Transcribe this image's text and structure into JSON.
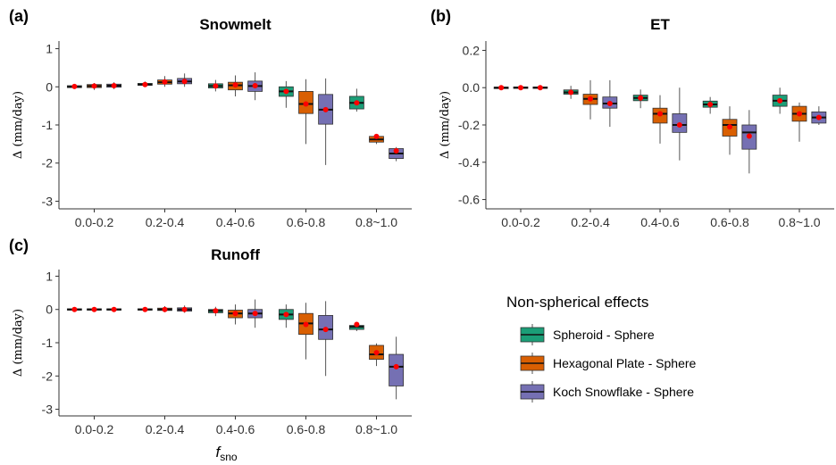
{
  "chart_data": [
    {
      "type": "box",
      "panel": "(a)",
      "title": "Snowmelt",
      "ylabel": "Δ (mm/day)",
      "xlabel": "",
      "ylim": [
        -3.2,
        1.2
      ],
      "yticks": [
        -3,
        -2,
        -1,
        0,
        1
      ],
      "ytick_labels": [
        "-3",
        "-2",
        "-1",
        "0",
        "1"
      ],
      "categories": [
        "0.0-0.2",
        "0.2-0.4",
        "0.4-0.6",
        "0.6-0.8",
        "0.8~1.0"
      ],
      "series": [
        {
          "name": "Spheroid - Sphere",
          "color": "#1b9e77",
          "boxes": [
            {
              "min": -0.05,
              "q1": -0.02,
              "median": 0.0,
              "q3": 0.03,
              "max": 0.06,
              "mean": 0.01
            },
            {
              "min": 0.0,
              "q1": 0.04,
              "median": 0.06,
              "q3": 0.09,
              "max": 0.14,
              "mean": 0.06
            },
            {
              "min": -0.12,
              "q1": -0.03,
              "median": 0.02,
              "q3": 0.08,
              "max": 0.18,
              "mean": 0.02
            },
            {
              "min": -0.55,
              "q1": -0.25,
              "median": -0.12,
              "q3": 0.0,
              "max": 0.15,
              "mean": -0.12
            },
            {
              "min": -0.65,
              "q1": -0.58,
              "median": -0.42,
              "q3": -0.25,
              "max": -0.05,
              "mean": -0.42
            }
          ]
        },
        {
          "name": "Hexagonal Plate - Sphere",
          "color": "#d95f02",
          "boxes": [
            {
              "min": -0.08,
              "q1": -0.02,
              "median": 0.02,
              "q3": 0.06,
              "max": 0.1,
              "mean": 0.02
            },
            {
              "min": 0.0,
              "q1": 0.07,
              "median": 0.12,
              "q3": 0.18,
              "max": 0.28,
              "mean": 0.13
            },
            {
              "min": -0.25,
              "q1": -0.08,
              "median": 0.04,
              "q3": 0.12,
              "max": 0.3,
              "mean": 0.05
            },
            {
              "min": -1.5,
              "q1": -0.7,
              "median": -0.45,
              "q3": -0.12,
              "max": 0.2,
              "mean": -0.45
            },
            {
              "min": -1.5,
              "q1": -1.45,
              "median": -1.38,
              "q3": -1.3,
              "max": -1.25,
              "mean": -1.3
            }
          ]
        },
        {
          "name": "Koch Snowflake - Sphere",
          "color": "#7570b3",
          "boxes": [
            {
              "min": -0.06,
              "q1": -0.01,
              "median": 0.03,
              "q3": 0.07,
              "max": 0.12,
              "mean": 0.03
            },
            {
              "min": 0.0,
              "q1": 0.08,
              "median": 0.14,
              "q3": 0.22,
              "max": 0.35,
              "mean": 0.14
            },
            {
              "min": -0.35,
              "q1": -0.12,
              "median": 0.02,
              "q3": 0.15,
              "max": 0.38,
              "mean": 0.03
            },
            {
              "min": -2.05,
              "q1": -0.98,
              "median": -0.6,
              "q3": -0.2,
              "max": 0.22,
              "mean": -0.6
            },
            {
              "min": -1.95,
              "q1": -1.88,
              "median": -1.75,
              "q3": -1.62,
              "max": -1.58,
              "mean": -1.68
            }
          ]
        }
      ]
    },
    {
      "type": "box",
      "panel": "(b)",
      "title": "ET",
      "ylabel": "Δ (mm/day)",
      "xlabel": "",
      "ylim": [
        -0.65,
        0.25
      ],
      "yticks": [
        -0.6,
        -0.4,
        -0.2,
        0.0,
        0.2
      ],
      "ytick_labels": [
        "-0.6",
        "-0.4",
        "-0.2",
        "0.0",
        "0.2"
      ],
      "categories": [
        "0.0-0.2",
        "0.2-0.4",
        "0.4-0.6",
        "0.6-0.8",
        "0.8~1.0"
      ],
      "series": [
        {
          "name": "Spheroid - Sphere",
          "color": "#1b9e77",
          "boxes": [
            {
              "min": -0.01,
              "q1": -0.005,
              "median": 0.0,
              "q3": 0.003,
              "max": 0.01,
              "mean": 0.0
            },
            {
              "min": -0.06,
              "q1": -0.035,
              "median": -0.025,
              "q3": -0.012,
              "max": 0.01,
              "mean": -0.025
            },
            {
              "min": -0.11,
              "q1": -0.07,
              "median": -0.055,
              "q3": -0.04,
              "max": -0.01,
              "mean": -0.055
            },
            {
              "min": -0.14,
              "q1": -0.105,
              "median": -0.09,
              "q3": -0.072,
              "max": -0.05,
              "mean": -0.09
            },
            {
              "min": -0.14,
              "q1": -0.1,
              "median": -0.07,
              "q3": -0.04,
              "max": 0.0,
              "mean": -0.07
            }
          ]
        },
        {
          "name": "Hexagonal Plate - Sphere",
          "color": "#d95f02",
          "boxes": [
            {
              "min": -0.01,
              "q1": -0.004,
              "median": 0.0,
              "q3": 0.004,
              "max": 0.01,
              "mean": 0.0
            },
            {
              "min": -0.17,
              "q1": -0.09,
              "median": -0.06,
              "q3": -0.035,
              "max": 0.04,
              "mean": -0.06
            },
            {
              "min": -0.3,
              "q1": -0.19,
              "median": -0.14,
              "q3": -0.11,
              "max": -0.04,
              "mean": -0.14
            },
            {
              "min": -0.36,
              "q1": -0.26,
              "median": -0.2,
              "q3": -0.17,
              "max": -0.1,
              "mean": -0.21
            },
            {
              "min": -0.29,
              "q1": -0.18,
              "median": -0.14,
              "q3": -0.1,
              "max": -0.08,
              "mean": -0.14
            }
          ]
        },
        {
          "name": "Koch Snowflake - Sphere",
          "color": "#7570b3",
          "boxes": [
            {
              "min": -0.01,
              "q1": -0.004,
              "median": 0.0,
              "q3": 0.004,
              "max": 0.01,
              "mean": 0.0
            },
            {
              "min": -0.21,
              "q1": -0.11,
              "median": -0.085,
              "q3": -0.05,
              "max": 0.04,
              "mean": -0.085
            },
            {
              "min": -0.39,
              "q1": -0.24,
              "median": -0.2,
              "q3": -0.14,
              "max": 0.0,
              "mean": -0.2
            },
            {
              "min": -0.46,
              "q1": -0.33,
              "median": -0.24,
              "q3": -0.2,
              "max": -0.12,
              "mean": -0.26
            },
            {
              "min": -0.2,
              "q1": -0.19,
              "median": -0.16,
              "q3": -0.13,
              "max": -0.1,
              "mean": -0.16
            }
          ]
        }
      ]
    },
    {
      "type": "box",
      "panel": "(c)",
      "title": "Runoff",
      "ylabel": "Δ (mm/day)",
      "xlabel": "fsno",
      "ylim": [
        -3.2,
        1.2
      ],
      "yticks": [
        -3,
        -2,
        -1,
        0,
        1
      ],
      "ytick_labels": [
        "-3",
        "-2",
        "-1",
        "0",
        "1"
      ],
      "categories": [
        "0.0-0.2",
        "0.2-0.4",
        "0.4-0.6",
        "0.6-0.8",
        "0.8~1.0"
      ],
      "series": [
        {
          "name": "Spheroid - Sphere",
          "color": "#1b9e77",
          "boxes": [
            {
              "min": -0.04,
              "q1": -0.02,
              "median": 0.0,
              "q3": 0.02,
              "max": 0.04,
              "mean": 0.0
            },
            {
              "min": -0.05,
              "q1": -0.02,
              "median": 0.0,
              "q3": 0.02,
              "max": 0.05,
              "mean": 0.0
            },
            {
              "min": -0.2,
              "q1": -0.1,
              "median": -0.04,
              "q3": 0.0,
              "max": 0.08,
              "mean": -0.04
            },
            {
              "min": -0.55,
              "q1": -0.3,
              "median": -0.15,
              "q3": 0.0,
              "max": 0.15,
              "mean": -0.15
            },
            {
              "min": -0.65,
              "q1": -0.6,
              "median": -0.52,
              "q3": -0.48,
              "max": -0.42,
              "mean": -0.45
            }
          ]
        },
        {
          "name": "Hexagonal Plate - Sphere",
          "color": "#d95f02",
          "boxes": [
            {
              "min": -0.05,
              "q1": -0.02,
              "median": 0.0,
              "q3": 0.02,
              "max": 0.05,
              "mean": 0.0
            },
            {
              "min": -0.08,
              "q1": -0.03,
              "median": 0.0,
              "q3": 0.04,
              "max": 0.1,
              "mean": 0.0
            },
            {
              "min": -0.45,
              "q1": -0.25,
              "median": -0.12,
              "q3": -0.02,
              "max": 0.15,
              "mean": -0.12
            },
            {
              "min": -1.5,
              "q1": -0.75,
              "median": -0.42,
              "q3": -0.12,
              "max": 0.2,
              "mean": -0.45
            },
            {
              "min": -1.7,
              "q1": -1.5,
              "median": -1.35,
              "q3": -1.08,
              "max": -1.02,
              "mean": -1.3
            }
          ]
        },
        {
          "name": "Koch Snowflake - Sphere",
          "color": "#7570b3",
          "boxes": [
            {
              "min": -0.06,
              "q1": -0.02,
              "median": 0.0,
              "q3": 0.02,
              "max": 0.06,
              "mean": 0.0
            },
            {
              "min": -0.1,
              "q1": -0.05,
              "median": 0.0,
              "q3": 0.05,
              "max": 0.12,
              "mean": 0.0
            },
            {
              "min": -0.55,
              "q1": -0.25,
              "median": -0.12,
              "q3": 0.0,
              "max": 0.3,
              "mean": -0.12
            },
            {
              "min": -2.0,
              "q1": -0.9,
              "median": -0.6,
              "q3": -0.18,
              "max": 0.25,
              "mean": -0.6
            },
            {
              "min": -2.7,
              "q1": -2.3,
              "median": -1.72,
              "q3": -1.35,
              "max": -0.82,
              "mean": -1.72
            }
          ]
        }
      ]
    }
  ],
  "legend": {
    "title": "Non-spherical effects",
    "items": [
      {
        "label": "Spheroid - Sphere",
        "color": "#1b9e77"
      },
      {
        "label": "Hexagonal Plate - Sphere",
        "color": "#d95f02"
      },
      {
        "label": "Koch Snowflake - Sphere",
        "color": "#7570b3"
      }
    ]
  },
  "x_axis_label": {
    "main": "f",
    "sub": "sno"
  },
  "mean_marker_color": "#ff0000"
}
